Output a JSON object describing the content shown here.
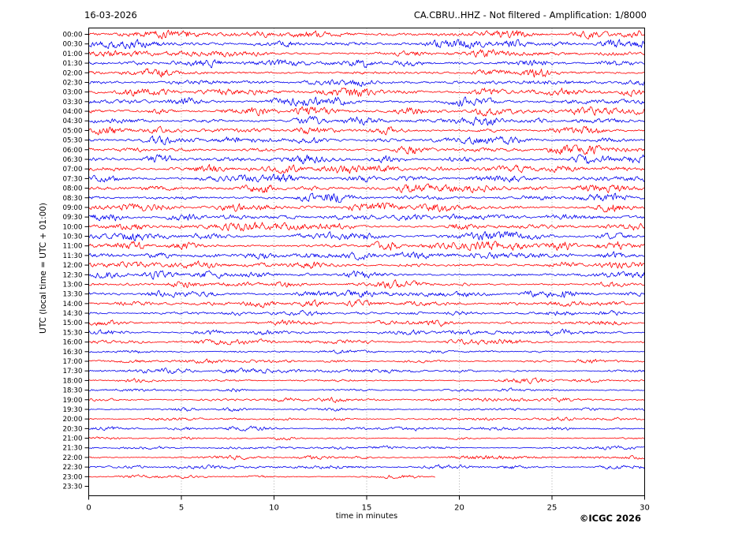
{
  "header": {
    "date": "16-03-2026",
    "station_info": "CA.CBRU..HHZ - Not filtered - Amplification: 1/8000"
  },
  "footer": {
    "copyright": "©ICGC 2026"
  },
  "chart_data": {
    "type": "line",
    "subtype": "helicorder-seismogram",
    "title": "16-03-2026",
    "station": "CA.CBRU..HHZ",
    "processing": "Not filtered",
    "amplification": "1/8000",
    "xlabel": "time in minutes",
    "ylabel": "UTC (local time = UTC + 01:00)",
    "xlim": [
      0,
      30
    ],
    "xticks": [
      0,
      5,
      10,
      15,
      20,
      25,
      30
    ],
    "minutes_per_row": 30,
    "grid": {
      "vertical_dotted_at": [
        5,
        10,
        15,
        20,
        25
      ],
      "color": "#999999"
    },
    "colors": {
      "hour_rows": "#ff0000",
      "half_hour_rows": "#0000ee",
      "axis": "#000000"
    },
    "legend": "rows alternate red (HH:00) and blue (HH:30); each row spans 30 minutes",
    "rows": [
      {
        "time": "00:00",
        "color": "#ff0000",
        "amplitude": 1.0,
        "end_minute": 30
      },
      {
        "time": "00:30",
        "color": "#0000ee",
        "amplitude": 0.95,
        "end_minute": 30
      },
      {
        "time": "01:00",
        "color": "#ff0000",
        "amplitude": 1.0,
        "end_minute": 30
      },
      {
        "time": "01:30",
        "color": "#0000ee",
        "amplitude": 0.95,
        "end_minute": 30
      },
      {
        "time": "02:00",
        "color": "#ff0000",
        "amplitude": 1.1,
        "end_minute": 30
      },
      {
        "time": "02:30",
        "color": "#0000ee",
        "amplitude": 1.05,
        "end_minute": 30
      },
      {
        "time": "03:00",
        "color": "#ff0000",
        "amplitude": 0.95,
        "end_minute": 30
      },
      {
        "time": "03:30",
        "color": "#0000ee",
        "amplitude": 1.0,
        "end_minute": 30
      },
      {
        "time": "04:00",
        "color": "#ff0000",
        "amplitude": 1.0,
        "end_minute": 30
      },
      {
        "time": "04:30",
        "color": "#0000ee",
        "amplitude": 1.05,
        "end_minute": 30
      },
      {
        "time": "05:00",
        "color": "#ff0000",
        "amplitude": 0.95,
        "end_minute": 30
      },
      {
        "time": "05:30",
        "color": "#0000ee",
        "amplitude": 0.9,
        "end_minute": 30
      },
      {
        "time": "06:00",
        "color": "#ff0000",
        "amplitude": 1.0,
        "end_minute": 30
      },
      {
        "time": "06:30",
        "color": "#0000ee",
        "amplitude": 1.0,
        "end_minute": 30
      },
      {
        "time": "07:00",
        "color": "#ff0000",
        "amplitude": 0.95,
        "end_minute": 30
      },
      {
        "time": "07:30",
        "color": "#0000ee",
        "amplitude": 1.0,
        "end_minute": 30
      },
      {
        "time": "08:00",
        "color": "#ff0000",
        "amplitude": 1.05,
        "end_minute": 30
      },
      {
        "time": "08:30",
        "color": "#0000ee",
        "amplitude": 1.1,
        "end_minute": 30
      },
      {
        "time": "09:00",
        "color": "#ff0000",
        "amplitude": 1.0,
        "end_minute": 30
      },
      {
        "time": "09:30",
        "color": "#0000ee",
        "amplitude": 0.95,
        "end_minute": 30
      },
      {
        "time": "10:00",
        "color": "#ff0000",
        "amplitude": 0.9,
        "end_minute": 30
      },
      {
        "time": "10:30",
        "color": "#0000ee",
        "amplitude": 0.95,
        "end_minute": 30
      },
      {
        "time": "11:00",
        "color": "#ff0000",
        "amplitude": 1.0,
        "end_minute": 30
      },
      {
        "time": "11:30",
        "color": "#0000ee",
        "amplitude": 0.85,
        "end_minute": 30
      },
      {
        "time": "12:00",
        "color": "#ff0000",
        "amplitude": 0.9,
        "end_minute": 30
      },
      {
        "time": "12:30",
        "color": "#0000ee",
        "amplitude": 0.95,
        "end_minute": 30
      },
      {
        "time": "13:00",
        "color": "#ff0000",
        "amplitude": 0.85,
        "end_minute": 30
      },
      {
        "time": "13:30",
        "color": "#0000ee",
        "amplitude": 0.8,
        "end_minute": 30
      },
      {
        "time": "14:00",
        "color": "#ff0000",
        "amplitude": 0.8,
        "end_minute": 30
      },
      {
        "time": "14:30",
        "color": "#0000ee",
        "amplitude": 0.7,
        "end_minute": 30
      },
      {
        "time": "15:00",
        "color": "#ff0000",
        "amplitude": 0.7,
        "end_minute": 30
      },
      {
        "time": "15:30",
        "color": "#0000ee",
        "amplitude": 0.6,
        "end_minute": 30
      },
      {
        "time": "16:00",
        "color": "#ff0000",
        "amplitude": 0.6,
        "end_minute": 30
      },
      {
        "time": "16:30",
        "color": "#0000ee",
        "amplitude": 0.5,
        "end_minute": 30
      },
      {
        "time": "17:00",
        "color": "#ff0000",
        "amplitude": 0.45,
        "end_minute": 30
      },
      {
        "time": "17:30",
        "color": "#0000ee",
        "amplitude": 0.5,
        "end_minute": 30
      },
      {
        "time": "18:00",
        "color": "#ff0000",
        "amplitude": 0.5,
        "end_minute": 30
      },
      {
        "time": "18:30",
        "color": "#0000ee",
        "amplitude": 0.45,
        "end_minute": 30
      },
      {
        "time": "19:00",
        "color": "#ff0000",
        "amplitude": 0.5,
        "end_minute": 30
      },
      {
        "time": "19:30",
        "color": "#0000ee",
        "amplitude": 0.45,
        "end_minute": 30
      },
      {
        "time": "20:00",
        "color": "#ff0000",
        "amplitude": 0.4,
        "end_minute": 30
      },
      {
        "time": "20:30",
        "color": "#0000ee",
        "amplitude": 0.45,
        "end_minute": 30
      },
      {
        "time": "21:00",
        "color": "#ff0000",
        "amplitude": 0.4,
        "end_minute": 30
      },
      {
        "time": "21:30",
        "color": "#0000ee",
        "amplitude": 0.45,
        "end_minute": 30
      },
      {
        "time": "22:00",
        "color": "#ff0000",
        "amplitude": 0.5,
        "end_minute": 30
      },
      {
        "time": "22:30",
        "color": "#0000ee",
        "amplitude": 0.45,
        "end_minute": 30
      },
      {
        "time": "23:00",
        "color": "#ff0000",
        "amplitude": 0.4,
        "end_minute": 18.7
      },
      {
        "time": "23:30",
        "color": "#0000ee",
        "amplitude": 0,
        "end_minute": 0
      }
    ]
  }
}
